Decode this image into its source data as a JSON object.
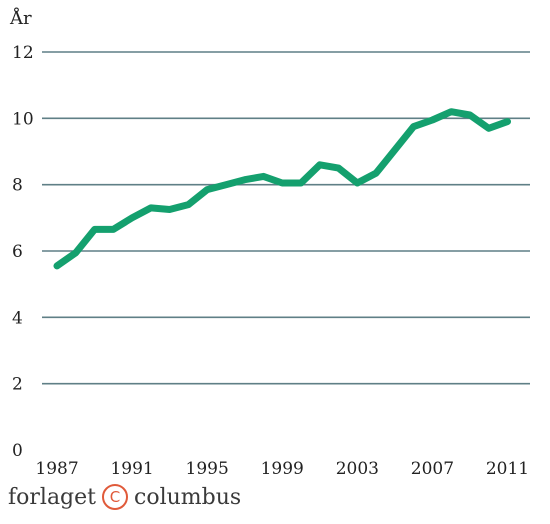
{
  "chart_data": {
    "type": "line",
    "ylabel": "År",
    "x_ticks": [
      "1987",
      "1991",
      "1995",
      "1999",
      "2003",
      "2007",
      "2011"
    ],
    "y_ticks": [
      "0",
      "2",
      "4",
      "6",
      "8",
      "10",
      "12"
    ],
    "xlim": [
      1986.2,
      2012.2
    ],
    "ylim": [
      0,
      12
    ],
    "grid": true,
    "color": "#14a06e",
    "series": [
      {
        "x": [
          1987,
          1988,
          1989,
          1990,
          1991,
          1992,
          1993,
          1994,
          1995,
          1996,
          1997,
          1998,
          1999,
          2000,
          2001,
          2002,
          2003,
          2004,
          2005,
          2006,
          2007,
          2008,
          2009,
          2010,
          2011
        ],
        "values": [
          5.55,
          5.95,
          6.65,
          6.65,
          7.0,
          7.3,
          7.25,
          7.4,
          7.85,
          8.0,
          8.15,
          8.25,
          8.05,
          8.05,
          8.6,
          8.5,
          8.05,
          8.35,
          9.05,
          9.75,
          9.95,
          10.2,
          10.1,
          9.7,
          9.9
        ]
      }
    ]
  },
  "footer": {
    "left_text": "forlaget",
    "copyright_symbol": "C",
    "right_text": "columbus"
  }
}
